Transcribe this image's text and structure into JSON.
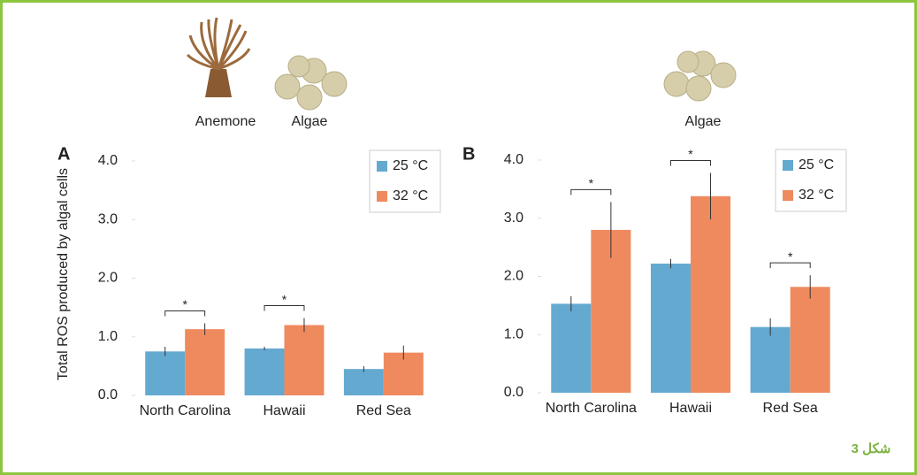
{
  "chart_data": [
    {
      "type": "bar",
      "panel": "A",
      "ylabel": "Total ROS produced by algal cells",
      "image_labels": [
        "Anemone",
        "Algae"
      ],
      "categories": [
        "North Carolina",
        "Hawaii",
        "Red Sea"
      ],
      "series": [
        {
          "name": "25 °C",
          "color": "#64a9d0",
          "values": [
            0.75,
            0.8,
            0.45
          ],
          "errors": [
            0.08,
            0.03,
            0.05
          ]
        },
        {
          "name": "32 °C",
          "color": "#ef8a5e",
          "values": [
            1.13,
            1.2,
            0.73
          ],
          "errors": [
            0.1,
            0.12,
            0.12
          ]
        }
      ],
      "annotations": [
        "*",
        "*",
        null
      ],
      "ylim": [
        0,
        4
      ],
      "yticks": [
        {
          "value": 0,
          "label": "0.0"
        },
        {
          "value": 1,
          "label": "1.0"
        },
        {
          "value": 2,
          "label": "2.0"
        },
        {
          "value": 3,
          "label": "3.0"
        },
        {
          "value": 4,
          "label": "4.0"
        }
      ],
      "legend": "top-right",
      "grid": false
    },
    {
      "type": "bar",
      "panel": "B",
      "image_labels": [
        "Algae"
      ],
      "categories": [
        "North Carolina",
        "Hawaii",
        "Red Sea"
      ],
      "series": [
        {
          "name": "25 °C",
          "color": "#64a9d0",
          "values": [
            1.53,
            2.22,
            1.13
          ],
          "errors": [
            0.13,
            0.08,
            0.15
          ]
        },
        {
          "name": "32 °C",
          "color": "#ef8a5e",
          "values": [
            2.8,
            3.38,
            1.82
          ],
          "errors": [
            0.48,
            0.4,
            0.2
          ]
        }
      ],
      "annotations": [
        "*",
        "*",
        "*"
      ],
      "ylim": [
        0,
        4
      ],
      "yticks": [
        {
          "value": 0,
          "label": "0.0"
        },
        {
          "value": 1,
          "label": "1.0"
        },
        {
          "value": 2,
          "label": "2.0"
        },
        {
          "value": 3,
          "label": "3.0"
        },
        {
          "value": 4,
          "label": "4.0"
        }
      ],
      "legend": "top-right",
      "grid": false
    }
  ],
  "caption": "شكل 3"
}
